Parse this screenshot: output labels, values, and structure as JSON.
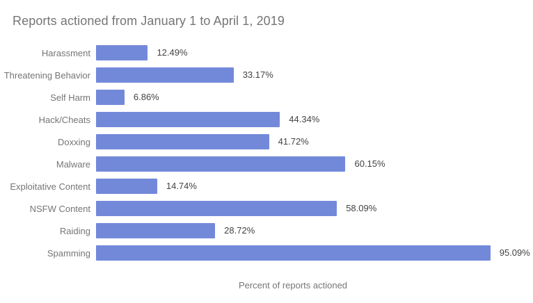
{
  "chart_data": {
    "type": "bar",
    "orientation": "horizontal",
    "title": "Reports actioned from January 1 to April 1, 2019",
    "xlabel": "Percent of reports actioned",
    "ylabel": "",
    "xlim": [
      0,
      100
    ],
    "grid": false,
    "legend": false,
    "categories": [
      "Harassment",
      "Threatening Behavior",
      "Self Harm",
      "Hack/Cheats",
      "Doxxing",
      "Malware",
      "Exploitative Content",
      "NSFW Content",
      "Raiding",
      "Spamming"
    ],
    "values": [
      12.49,
      33.17,
      6.86,
      44.34,
      41.72,
      60.15,
      14.74,
      58.09,
      28.72,
      95.09
    ],
    "value_labels": [
      "12.49%",
      "33.17%",
      "6.86%",
      "44.34%",
      "41.72%",
      "60.15%",
      "14.74%",
      "58.09%",
      "28.72%",
      "95.09%"
    ],
    "colors": {
      "bar": "#7289da",
      "title": "#757575",
      "category_label": "#757575",
      "value_label": "#424242",
      "axis_label": "#757575",
      "background": "#ffffff"
    }
  }
}
